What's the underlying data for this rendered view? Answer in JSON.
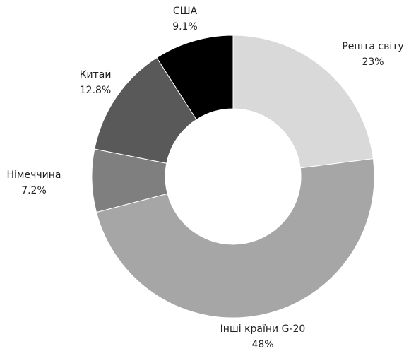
{
  "chart_data": {
    "type": "donut",
    "categories": [
      "Решта світу",
      "Інші країни G-20",
      "Німеччина",
      "Китай",
      "США"
    ],
    "values": [
      23,
      48,
      7.2,
      12.8,
      9.1
    ],
    "value_labels": [
      "23%",
      "48%",
      "7.2%",
      "12.8%",
      "9.1%"
    ],
    "colors": [
      "#d9d9d9",
      "#a6a6a6",
      "#7f7f7f",
      "#595959",
      "#000000"
    ]
  }
}
